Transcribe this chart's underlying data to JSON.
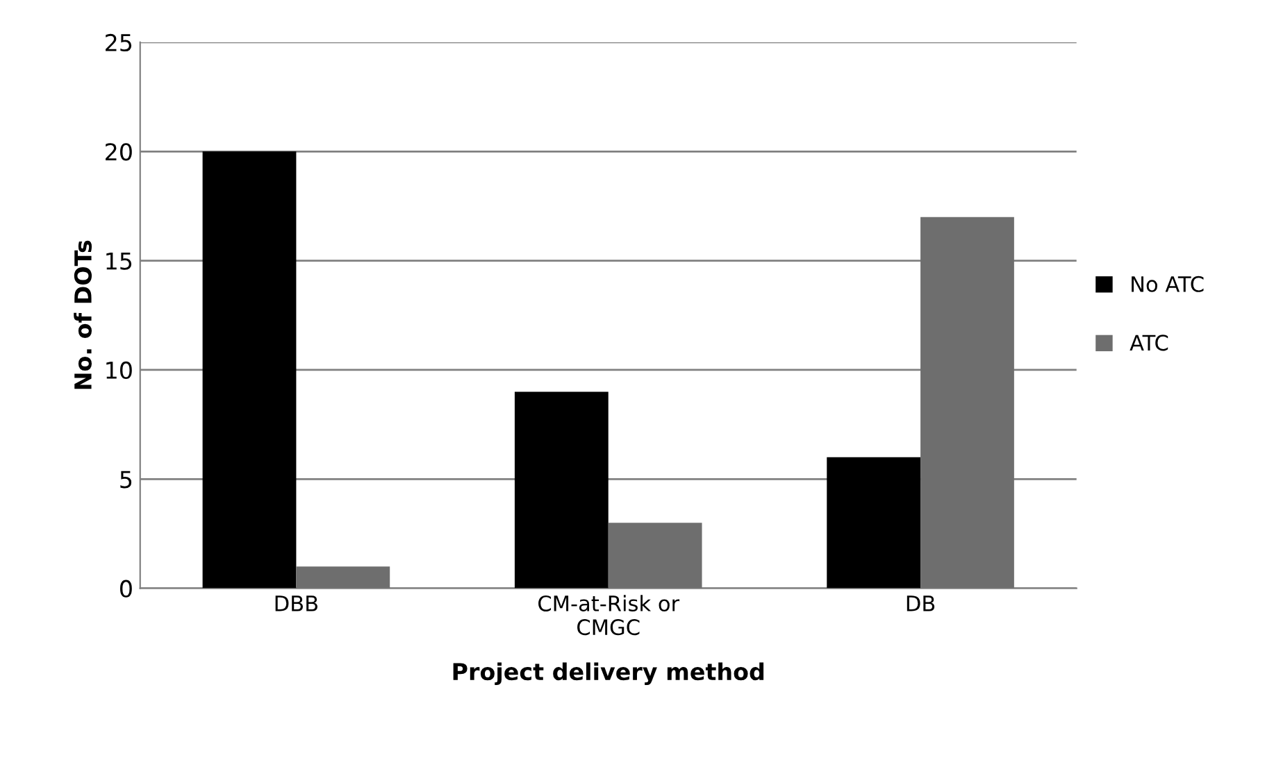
{
  "chart_data": {
    "type": "bar",
    "xlabel": "Project delivery method",
    "ylabel": "No. of DOTs",
    "categories": [
      "DBB",
      "CM-at-Risk or\nCMGC",
      "DB"
    ],
    "series": [
      {
        "name": "No ATC",
        "color": "#000000",
        "values": [
          20,
          9,
          6
        ]
      },
      {
        "name": "ATC",
        "color": "#6e6e6e",
        "values": [
          1,
          3,
          17
        ]
      }
    ],
    "ylim": [
      0,
      25
    ],
    "yticks": [
      0,
      5,
      10,
      15,
      20,
      25
    ],
    "grid": "y",
    "legend": "right"
  }
}
